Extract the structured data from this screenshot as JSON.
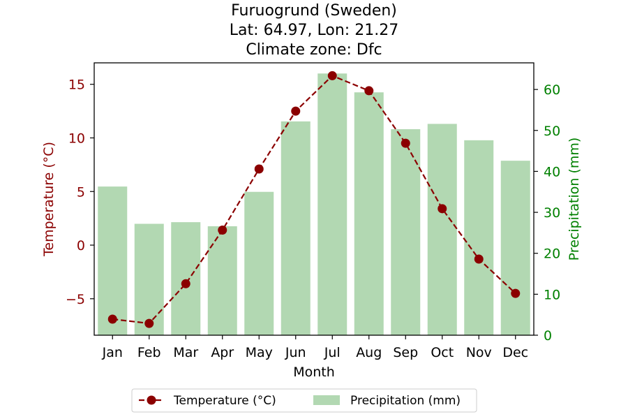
{
  "chart_data": {
    "type": "bar+line",
    "title_lines": [
      "Furuogrund (Sweden)",
      "Lat: 64.97, Lon: 21.27",
      "Climate zone: Dfc"
    ],
    "xlabel": "Month",
    "ylabel_left": "Temperature (°C)",
    "ylabel_right": "Precipitation (mm)",
    "categories": [
      "Jan",
      "Feb",
      "Mar",
      "Apr",
      "May",
      "Jun",
      "Jul",
      "Aug",
      "Sep",
      "Oct",
      "Nov",
      "Dec"
    ],
    "ylim_left": [
      -8.4,
      17.0
    ],
    "ylim_right": [
      0,
      66.5
    ],
    "yticks_left": [
      -5,
      0,
      5,
      10,
      15
    ],
    "yticks_right": [
      0,
      10,
      20,
      30,
      40,
      50,
      60
    ],
    "series": [
      {
        "name": "Temperature (°C)",
        "kind": "line",
        "axis": "left",
        "color": "#8b0000",
        "values": [
          -6.9,
          -7.3,
          -3.6,
          1.4,
          7.1,
          12.5,
          15.8,
          14.4,
          9.5,
          3.4,
          -1.3,
          -4.5
        ]
      },
      {
        "name": "Precipitation (mm)",
        "kind": "bar",
        "axis": "right",
        "color": "#b2d8b2",
        "values": [
          36.3,
          27.2,
          27.6,
          26.6,
          35.0,
          52.2,
          63.9,
          59.3,
          50.3,
          51.6,
          47.6,
          42.6
        ]
      }
    ],
    "legend_position": "bottom-center",
    "left_axis_color": "#8b0000",
    "right_axis_color": "#008000"
  }
}
